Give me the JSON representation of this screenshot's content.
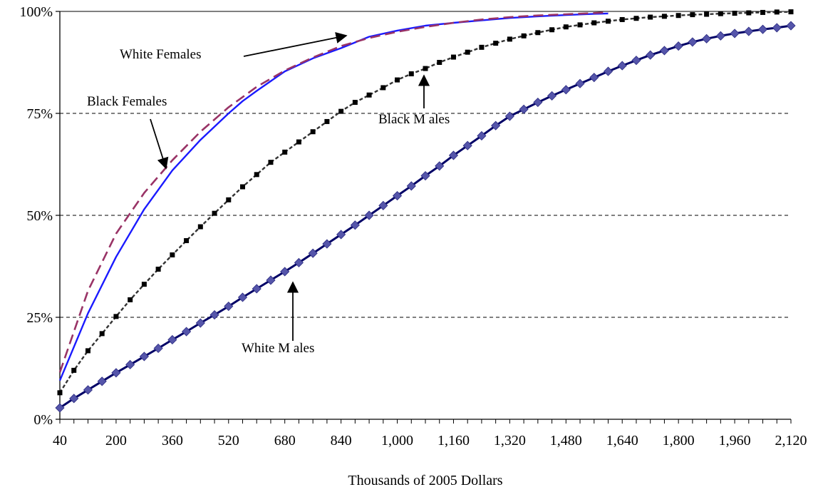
{
  "chart_data": {
    "type": "line",
    "xlabel": "Thousands of 2005 Dollars",
    "ylabel": "",
    "title": "",
    "x_ticks": [
      40,
      200,
      360,
      520,
      680,
      840,
      1000,
      1160,
      1320,
      1480,
      1640,
      1800,
      1960,
      2120
    ],
    "x_tick_labels": [
      "40",
      "200",
      "360",
      "520",
      "680",
      "840",
      "1,000",
      "1,160",
      "1,320",
      "1,480",
      "1,640",
      "1,800",
      "1,960",
      "2,120"
    ],
    "y_ticks": [
      0,
      25,
      50,
      75,
      100
    ],
    "y_tick_labels": [
      "0%",
      "25%",
      "50%",
      "75%",
      "100%"
    ],
    "xlim": [
      40,
      2120
    ],
    "ylim": [
      0,
      100
    ],
    "grid": "horizontal dashed",
    "legend": "none",
    "series": [
      {
        "name": "White Females",
        "color": "#1a1aff",
        "style": "solid",
        "marker": "none",
        "x": [
          40,
          120,
          200,
          280,
          360,
          440,
          520,
          560,
          600,
          680,
          760,
          840,
          920,
          1000,
          1080,
          1160,
          1240,
          1320,
          1400,
          1480,
          1560,
          1600
        ],
        "y": [
          9.5,
          26,
          39.8,
          51.5,
          61,
          68.5,
          75,
          78,
          80.5,
          85.3,
          88.5,
          91,
          93.8,
          95.3,
          96.5,
          97.2,
          97.8,
          98.4,
          98.8,
          99.1,
          99.4,
          99.5
        ]
      },
      {
        "name": "Black Females",
        "color": "#993366",
        "style": "dashed",
        "marker": "none",
        "x": [
          40,
          120,
          200,
          280,
          360,
          440,
          520,
          600,
          680,
          760,
          840,
          920,
          1000,
          1080,
          1160,
          1240,
          1320,
          1400,
          1480,
          1560,
          1600
        ],
        "y": [
          11.5,
          31.5,
          45.5,
          55.5,
          63.5,
          70.5,
          76.5,
          81.5,
          85.5,
          88.7,
          91.5,
          93.5,
          95,
          96.2,
          97.2,
          98,
          98.6,
          99,
          99.3,
          99.6,
          99.8
        ]
      },
      {
        "name": "Black Males",
        "color": "#333333",
        "style": "dashed",
        "marker": "square",
        "x": [
          40,
          80,
          120,
          160,
          200,
          240,
          280,
          320,
          360,
          400,
          440,
          480,
          520,
          560,
          600,
          640,
          680,
          720,
          760,
          800,
          840,
          880,
          920,
          960,
          1000,
          1040,
          1080,
          1120,
          1160,
          1200,
          1240,
          1280,
          1320,
          1360,
          1400,
          1440,
          1480,
          1520,
          1560,
          1600,
          1640,
          1680,
          1720,
          1760,
          1800,
          1840,
          1880,
          1920,
          1960,
          2000,
          2040,
          2080,
          2120
        ],
        "y": [
          6.5,
          12,
          16.8,
          21,
          25.2,
          29.3,
          33.1,
          36.8,
          40.3,
          43.8,
          47.2,
          50.5,
          53.8,
          57,
          60,
          63,
          65.5,
          68,
          70.5,
          73,
          75.5,
          77.7,
          79.5,
          81.3,
          83.2,
          84.7,
          86,
          87.5,
          88.8,
          90,
          91.2,
          92.2,
          93.2,
          94,
          94.8,
          95.5,
          96.2,
          96.7,
          97.2,
          97.6,
          98,
          98.3,
          98.6,
          98.8,
          99,
          99.2,
          99.3,
          99.45,
          99.55,
          99.65,
          99.75,
          99.85,
          99.9
        ]
      },
      {
        "name": "White Males",
        "color": "#000066",
        "style": "solid",
        "marker": "diamond",
        "marker_color": "#5555aa",
        "x": [
          40,
          80,
          120,
          160,
          200,
          240,
          280,
          320,
          360,
          400,
          440,
          480,
          520,
          560,
          600,
          640,
          680,
          720,
          760,
          800,
          840,
          880,
          920,
          960,
          1000,
          1040,
          1080,
          1120,
          1160,
          1200,
          1240,
          1280,
          1320,
          1360,
          1400,
          1440,
          1480,
          1520,
          1560,
          1600,
          1640,
          1680,
          1720,
          1760,
          1800,
          1840,
          1880,
          1920,
          1960,
          2000,
          2040,
          2080,
          2120
        ],
        "y": [
          2.8,
          5.1,
          7.2,
          9.3,
          11.4,
          13.4,
          15.4,
          17.4,
          19.5,
          21.5,
          23.6,
          25.6,
          27.7,
          29.9,
          32,
          34.1,
          36.2,
          38.4,
          40.7,
          43,
          45.3,
          47.6,
          50,
          52.4,
          54.8,
          57.2,
          59.7,
          62.1,
          64.7,
          67.1,
          69.5,
          72,
          74.3,
          76,
          77.7,
          79.3,
          80.8,
          82.3,
          83.8,
          85.3,
          86.7,
          88,
          89.3,
          90.4,
          91.5,
          92.5,
          93.3,
          94,
          94.6,
          95.1,
          95.6,
          96,
          96.5
        ]
      }
    ],
    "annotations": [
      {
        "text": "White Females",
        "series": "White Females"
      },
      {
        "text": "Black Females",
        "series": "Black Females"
      },
      {
        "text": "Black M ales",
        "series": "Black Males"
      },
      {
        "text": "White M ales",
        "series": "White Males"
      }
    ]
  }
}
